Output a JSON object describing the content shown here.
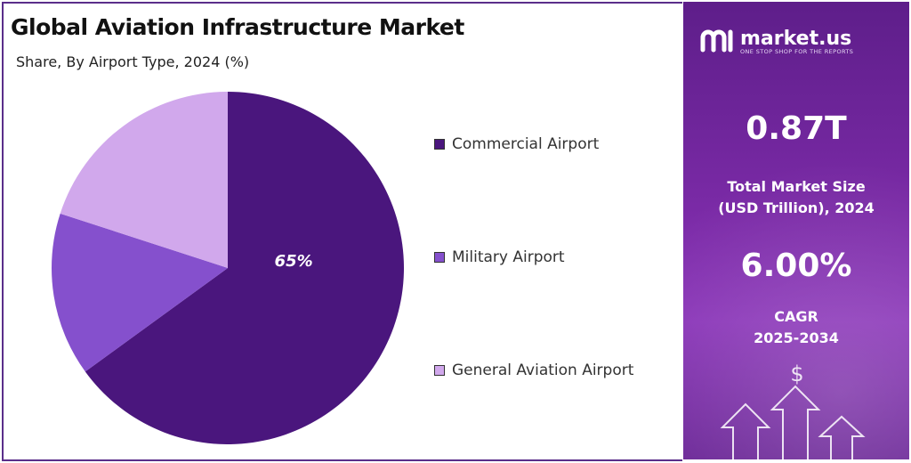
{
  "title": "Global Aviation Infrastructure Market",
  "subtitle": "Share, By Airport Type, 2024 (%)",
  "chart_data": {
    "type": "pie",
    "categories": [
      "Commercial Airport",
      "Military Airport",
      "General Aviation Airport"
    ],
    "values": [
      65,
      15,
      20
    ],
    "data_labels": [
      "65%",
      "",
      ""
    ],
    "colors": [
      "#4a167d",
      "#8550cd",
      "#d1a8ec"
    ],
    "legend": "right"
  },
  "brand": {
    "name": "market.us",
    "tagline": "ONE STOP SHOP FOR THE REPORTS"
  },
  "stats": {
    "market_size_value": "0.87T",
    "market_size_label_line1": "Total Market Size",
    "market_size_label_line2": "(USD Trillion), 2024",
    "cagr_value": "6.00%",
    "cagr_label_line1": "CAGR",
    "cagr_label_line2": "2025-2034"
  },
  "decor": {
    "currency_symbol": "$"
  }
}
